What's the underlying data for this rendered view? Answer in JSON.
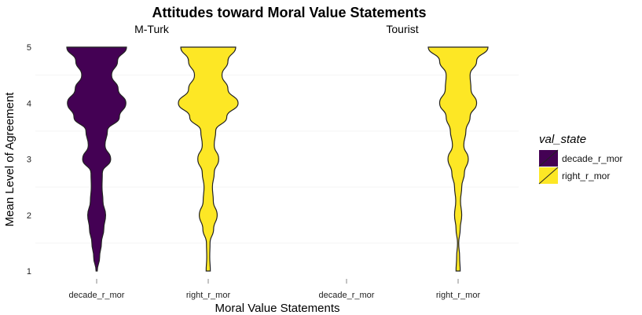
{
  "chart_data": {
    "type": "violin",
    "title": "Attitudes toward Moral Value Statements",
    "xlabel": "Moral Value Statements",
    "ylabel": "Mean Level of Agreement",
    "ylim": [
      1,
      5
    ],
    "yticks": [
      "1",
      "2",
      "3",
      "4",
      "5"
    ],
    "grid": false,
    "legend": {
      "title": "val_state",
      "position": "right",
      "entries": [
        {
          "label": "decade_r_mor",
          "color": "#440154"
        },
        {
          "label": "right_r_mor",
          "color": "#FDE725"
        }
      ]
    },
    "panels": [
      {
        "label": "M-Turk",
        "categories": [
          "decade_r_mor",
          "right_r_mor"
        ],
        "series": [
          {
            "category": "decade_r_mor",
            "color": "#440154",
            "profile": [
              [
                1.0,
                0.02
              ],
              [
                1.25,
                0.1
              ],
              [
                1.5,
                0.16
              ],
              [
                1.75,
                0.24
              ],
              [
                2.0,
                0.3
              ],
              [
                2.25,
                0.21
              ],
              [
                2.5,
                0.18
              ],
              [
                2.75,
                0.19
              ],
              [
                3.0,
                0.47
              ],
              [
                3.25,
                0.28
              ],
              [
                3.5,
                0.36
              ],
              [
                3.75,
                0.76
              ],
              [
                4.0,
                0.98
              ],
              [
                4.25,
                0.72
              ],
              [
                4.5,
                0.5
              ],
              [
                4.75,
                0.7
              ],
              [
                5.0,
                1.0
              ]
            ]
          },
          {
            "category": "right_r_mor",
            "color": "#FDE725",
            "profile": [
              [
                1.0,
                0.07
              ],
              [
                1.25,
                0.05
              ],
              [
                1.5,
                0.06
              ],
              [
                1.75,
                0.18
              ],
              [
                2.0,
                0.3
              ],
              [
                2.25,
                0.17
              ],
              [
                2.5,
                0.14
              ],
              [
                2.75,
                0.2
              ],
              [
                3.0,
                0.35
              ],
              [
                3.25,
                0.2
              ],
              [
                3.5,
                0.25
              ],
              [
                3.75,
                0.62
              ],
              [
                4.0,
                1.0
              ],
              [
                4.25,
                0.66
              ],
              [
                4.5,
                0.46
              ],
              [
                4.75,
                0.66
              ],
              [
                5.0,
                0.92
              ]
            ]
          }
        ]
      },
      {
        "label": "Tourist",
        "categories": [
          "decade_r_mor",
          "right_r_mor"
        ],
        "series": [
          {
            "category": "right_r_mor",
            "color": "#FDE725",
            "profile": [
              [
                1.0,
                0.07
              ],
              [
                1.25,
                0.05
              ],
              [
                1.5,
                0.02
              ],
              [
                1.75,
                0.07
              ],
              [
                2.0,
                0.12
              ],
              [
                2.25,
                0.08
              ],
              [
                2.5,
                0.12
              ],
              [
                2.75,
                0.21
              ],
              [
                3.0,
                0.34
              ],
              [
                3.25,
                0.19
              ],
              [
                3.5,
                0.26
              ],
              [
                3.75,
                0.4
              ],
              [
                4.0,
                0.62
              ],
              [
                4.25,
                0.43
              ],
              [
                4.5,
                0.4
              ],
              [
                4.75,
                0.62
              ],
              [
                5.0,
                1.0
              ]
            ]
          }
        ]
      }
    ]
  }
}
